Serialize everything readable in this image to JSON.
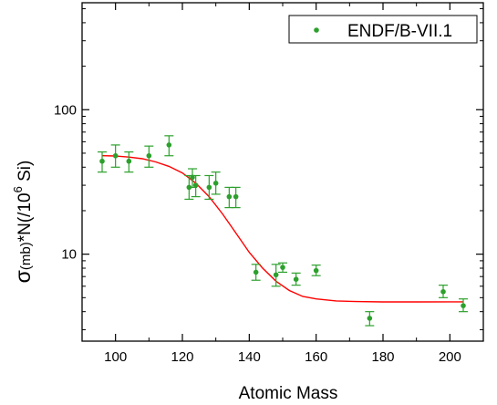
{
  "chart_data": {
    "type": "scatter",
    "xlabel": "Atomic Mass",
    "ylabel": {
      "main": "σ",
      "sub": "(mb)",
      "mid": "*N(/10",
      "sup": "6",
      "end": " Si)"
    },
    "xlim": [
      90,
      210
    ],
    "ylim": [
      2.5,
      550
    ],
    "yscale": "log",
    "x_ticks": [
      100,
      120,
      140,
      160,
      180,
      200
    ],
    "y_ticks": [
      10,
      100
    ],
    "grid": false,
    "legend_position": "top-right",
    "series": [
      {
        "name": "ENDF/B-VII.1",
        "color": "#2ca02c",
        "points": [
          {
            "x": 96,
            "y": 44,
            "lo": 37,
            "hi": 51
          },
          {
            "x": 100,
            "y": 48,
            "lo": 40,
            "hi": 57
          },
          {
            "x": 104,
            "y": 44,
            "lo": 37,
            "hi": 51
          },
          {
            "x": 110,
            "y": 48,
            "lo": 40,
            "hi": 56
          },
          {
            "x": 116,
            "y": 57,
            "lo": 48,
            "hi": 66
          },
          {
            "x": 122,
            "y": 29,
            "lo": 24,
            "hi": 35
          },
          {
            "x": 123,
            "y": 34,
            "lo": 29,
            "hi": 39
          },
          {
            "x": 124,
            "y": 30,
            "lo": 25,
            "hi": 35
          },
          {
            "x": 128,
            "y": 29,
            "lo": 24,
            "hi": 35
          },
          {
            "x": 130,
            "y": 31,
            "lo": 26,
            "hi": 37
          },
          {
            "x": 134,
            "y": 25,
            "lo": 21,
            "hi": 29
          },
          {
            "x": 136,
            "y": 25,
            "lo": 21,
            "hi": 29
          },
          {
            "x": 142,
            "y": 7.5,
            "lo": 6.6,
            "hi": 8.5
          },
          {
            "x": 148,
            "y": 7.2,
            "lo": 6.0,
            "hi": 8.5
          },
          {
            "x": 150,
            "y": 8.1,
            "lo": 7.5,
            "hi": 8.7
          },
          {
            "x": 154,
            "y": 6.7,
            "lo": 6.1,
            "hi": 7.4
          },
          {
            "x": 160,
            "y": 7.7,
            "lo": 7.1,
            "hi": 8.4
          },
          {
            "x": 176,
            "y": 3.6,
            "lo": 3.2,
            "hi": 4.0
          },
          {
            "x": 198,
            "y": 5.5,
            "lo": 5.0,
            "hi": 6.1
          },
          {
            "x": 204,
            "y": 4.4,
            "lo": 4.0,
            "hi": 4.9
          }
        ]
      }
    ],
    "fit_curve": {
      "color": "#ff0000",
      "points": [
        [
          96,
          48
        ],
        [
          100,
          47.8
        ],
        [
          104,
          47
        ],
        [
          108,
          45.8
        ],
        [
          112,
          43.5
        ],
        [
          116,
          40.5
        ],
        [
          120,
          36.5
        ],
        [
          124,
          31
        ],
        [
          128,
          25
        ],
        [
          132,
          19
        ],
        [
          136,
          14
        ],
        [
          140,
          10.3
        ],
        [
          144,
          8
        ],
        [
          148,
          6.5
        ],
        [
          152,
          5.6
        ],
        [
          156,
          5.1
        ],
        [
          160,
          4.9
        ],
        [
          166,
          4.75
        ],
        [
          172,
          4.7
        ],
        [
          180,
          4.67
        ],
        [
          190,
          4.67
        ],
        [
          200,
          4.68
        ],
        [
          204,
          4.68
        ]
      ]
    }
  }
}
